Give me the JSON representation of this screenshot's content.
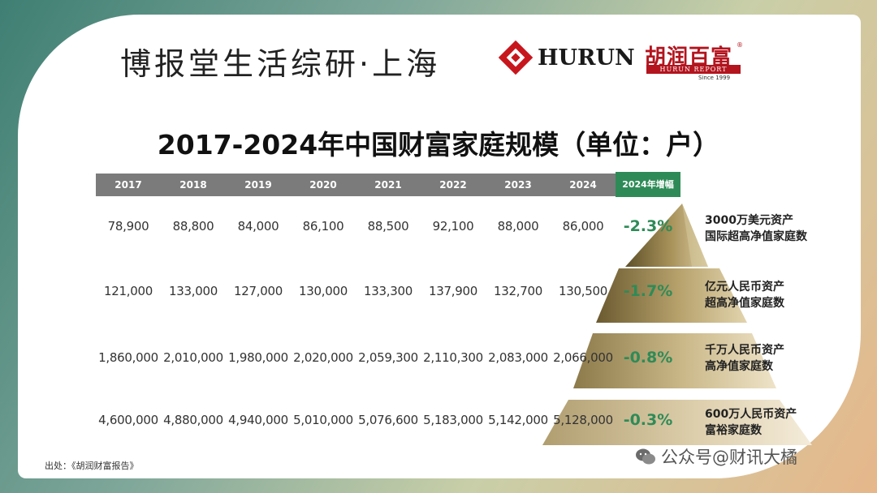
{
  "header": {
    "brand_cn": "博报堂生活综研·上海",
    "hurun": "HURUN",
    "report_cn": "胡润百富",
    "report_reg": "®",
    "report_en": "HURUN REPORT",
    "report_since": "Since 1999"
  },
  "title": "2017-2024年中国财富家庭规模（单位：户）",
  "table": {
    "years": [
      "2017",
      "2018",
      "2019",
      "2020",
      "2021",
      "2022",
      "2023",
      "2024"
    ],
    "growth_header": "2024年增幅"
  },
  "chart_data": {
    "type": "table",
    "title": "2017-2024年中国财富家庭规模（单位：户）",
    "columns": [
      "2017",
      "2018",
      "2019",
      "2020",
      "2021",
      "2022",
      "2023",
      "2024",
      "2024年增幅"
    ],
    "rows": [
      {
        "category": "3000万美元资产国际超高净值家庭数",
        "label_lines": [
          "3000万美元资产",
          "国际超高净值家庭数"
        ],
        "values": [
          "78,900",
          "88,800",
          "84,000",
          "86,100",
          "88,500",
          "92,100",
          "88,000",
          "86,000"
        ],
        "growth": "-2.3%"
      },
      {
        "category": "亿元人民币资产超高净值家庭数",
        "label_lines": [
          "亿元人民币资产",
          "超高净值家庭数"
        ],
        "values": [
          "121,000",
          "133,000",
          "127,000",
          "130,000",
          "133,300",
          "137,900",
          "132,700",
          "130,500"
        ],
        "growth": "-1.7%"
      },
      {
        "category": "千万人民币资产高净值家庭数",
        "label_lines": [
          "千万人民币资产",
          "高净值家庭数"
        ],
        "values": [
          "1,860,000",
          "2,010,000",
          "1,980,000",
          "2,020,000",
          "2,059,300",
          "2,110,300",
          "2,083,000",
          "2,066,000"
        ],
        "growth": "-0.8%"
      },
      {
        "category": "600万人民币资产富裕家庭数",
        "label_lines": [
          "600万人民币资产",
          "富裕家庭数"
        ],
        "values": [
          "4,600,000",
          "4,880,000",
          "4,940,000",
          "5,010,000",
          "5,076,600",
          "5,183,000",
          "5,142,000",
          "5,128,000"
        ],
        "growth": "-0.3%"
      }
    ]
  },
  "footer": {
    "source": "出处：《胡润财富报告》",
    "watermark": "公众号@财讯大橘"
  },
  "colors": {
    "header_gray": "#7b7b7b",
    "accent_green": "#2e8b57",
    "brand_red": "#b3141e",
    "pyramid_gold": "#8a7a4a"
  }
}
